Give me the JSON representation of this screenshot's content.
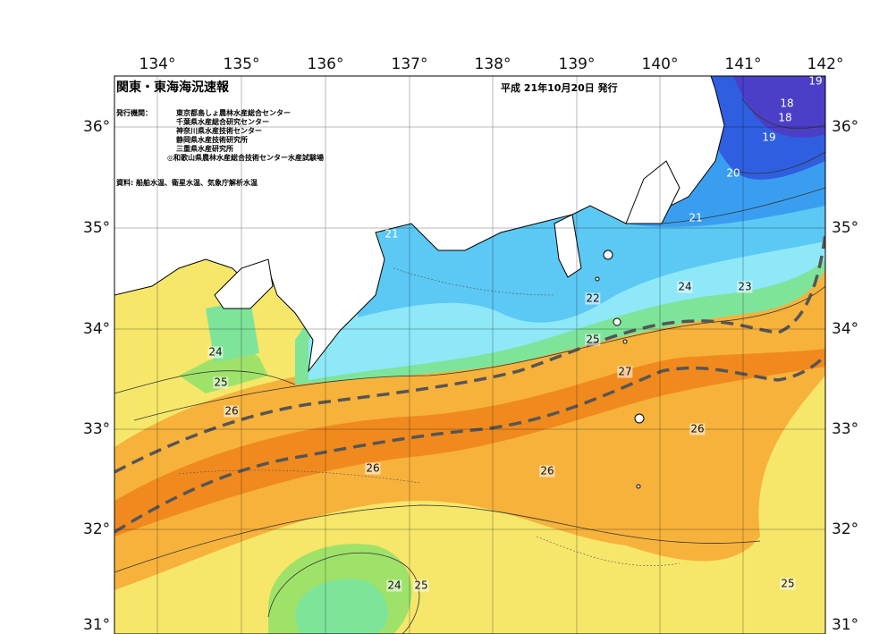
{
  "title": "関東・東海海況速報",
  "issue_date": "平成 21年10月20日 発行",
  "issuers_label": "発行機関：",
  "issuers": [
    "東京都島しょ農林水産総合センター",
    "千葉県水産総合研究センター",
    "神奈川県水産技術センター",
    "静岡県水産技術研究所",
    "三重県水産研究所",
    "◎和歌山県農林水産総合技術センター水産試験場"
  ],
  "source": "資料: 船舶水温、衛星水温、気象庁解析水温",
  "longitude_labels": [
    "134°",
    "135°",
    "136°",
    "137°",
    "138°",
    "139°",
    "140°",
    "141°",
    "142°"
  ],
  "latitude_labels": [
    "36°",
    "35°",
    "34°",
    "33°",
    "32°",
    "31°"
  ],
  "contour_labels": [
    "19",
    "18",
    "18",
    "19",
    "20",
    "21",
    "21",
    "22",
    "24",
    "23",
    "24",
    "25",
    "25",
    "27",
    "26",
    "26",
    "26",
    "26",
    "24",
    "25",
    "25"
  ],
  "colors": {
    "sst_18_19": "#4b3fc8",
    "sst_19_20": "#2f5fe0",
    "sst_20_21": "#3a9ef0",
    "sst_21_22": "#5cc8f4",
    "sst_22_23": "#8ee8f8",
    "sst_23_24": "#7ee49a",
    "sst_24_25": "#9fe26a",
    "sst_25_26": "#f6e76a",
    "sst_26_27": "#f7b23c",
    "sst_27": "#f08a1e",
    "land": "#ffffff",
    "kuroshio_axis": "#555555"
  }
}
